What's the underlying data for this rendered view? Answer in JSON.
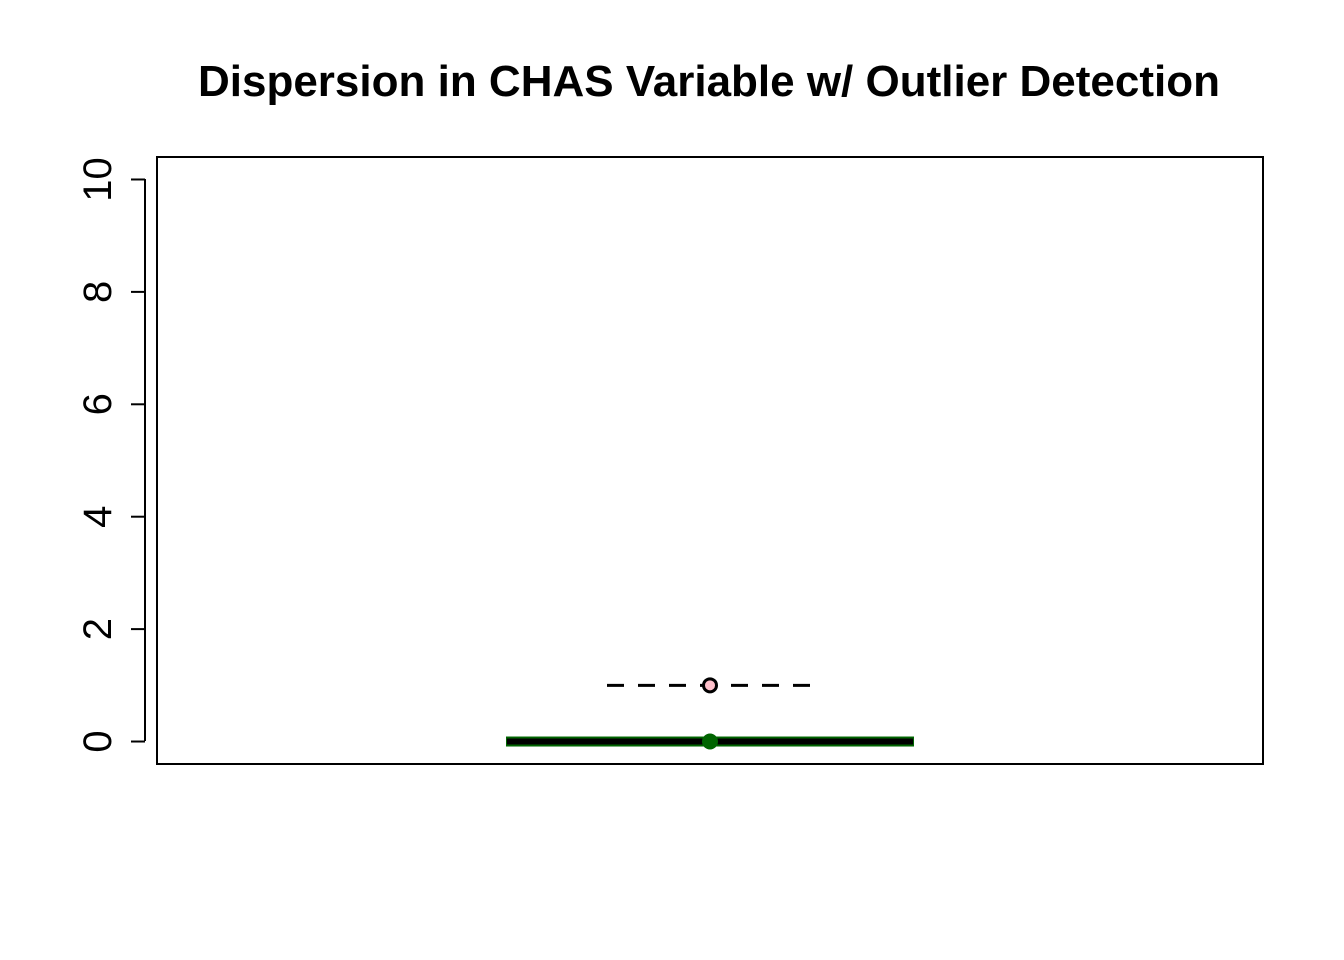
{
  "chart_data": {
    "type": "box",
    "title": "Dispersion in CHAS Variable w/ Outlier Detection",
    "xlabel": "",
    "ylabel": "",
    "ylim": [
      -0.4,
      10.4
    ],
    "yticks": [
      0,
      2,
      4,
      6,
      8,
      10
    ],
    "ytick_labels": [
      "0",
      "2",
      "4",
      "6",
      "8",
      "10"
    ],
    "grid": false,
    "box": {
      "min": 0,
      "q1": 0,
      "median": 0,
      "q3": 0,
      "max": 0,
      "mean": 0,
      "outliers": [
        1
      ]
    },
    "colors": {
      "box_fill": "#006400",
      "median_line": "#000000",
      "mean_point": "#006400",
      "outlier_stroke": "#000000",
      "outlier_fill": "#ffc0cb"
    }
  }
}
